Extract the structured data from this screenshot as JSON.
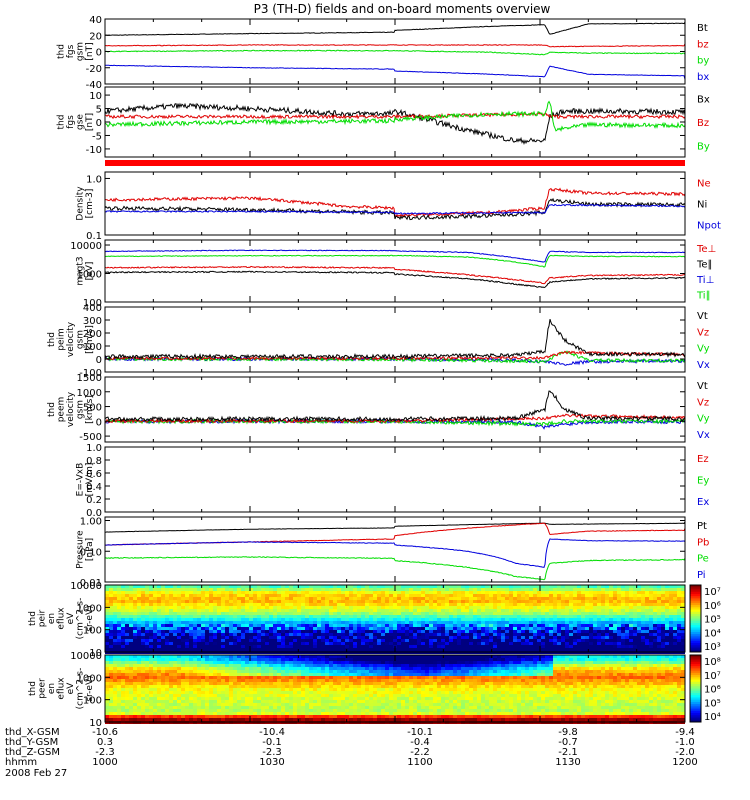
{
  "title": "P3 (TH-D) fields and on-board moments overview",
  "date_label": "2008 Feb 27",
  "orbit": {
    "rows": [
      {
        "name": "thd_X-GSM",
        "values": [
          "-10.6",
          "-10.4",
          "-10.1",
          "-9.8",
          "-9.4"
        ]
      },
      {
        "name": "thd_Y-GSM",
        "values": [
          "0.3",
          "-0.1",
          "-0.4",
          "-0.7",
          "-1.0"
        ]
      },
      {
        "name": "thd_Z-GSM",
        "values": [
          "-2.3",
          "-2.3",
          "-2.2",
          "-2.1",
          "-2.0"
        ]
      },
      {
        "name": "hhmm",
        "values": [
          "1000",
          "1030",
          "1100",
          "1130",
          "1200"
        ]
      }
    ]
  },
  "colors": {
    "black": "#000000",
    "red": "#e00000",
    "green": "#00dd00",
    "blue": "#0000dd"
  },
  "chart_data": [
    {
      "type": "line",
      "id": "fgs_gsm",
      "ylabel": [
        "thd",
        "fgs",
        "gsm",
        "[nT]"
      ],
      "ticks": [
        "40",
        "20",
        "0",
        "-20",
        "-40"
      ],
      "ylim": [
        -40,
        40
      ],
      "log": false,
      "legend": [
        {
          "label": "Bt",
          "color": "#000000"
        },
        {
          "label": "bz",
          "color": "#e00000"
        },
        {
          "label": "by",
          "color": "#00dd00"
        },
        {
          "label": "bx",
          "color": "#0000dd"
        }
      ],
      "series": [
        {
          "name": "Bt",
          "color": "#000000",
          "noise": 0.3,
          "x": [
            1000,
            1030,
            1100,
            1120,
            1131,
            1132,
            1140,
            1200
          ],
          "y": [
            20,
            22,
            26,
            31,
            33,
            21,
            34,
            36
          ]
        },
        {
          "name": "bz",
          "color": "#e00000",
          "noise": 0.4,
          "x": [
            1000,
            1030,
            1100,
            1131,
            1132,
            1200
          ],
          "y": [
            7,
            8,
            8,
            8,
            6,
            9
          ]
        },
        {
          "name": "by",
          "color": "#00dd00",
          "noise": 0.5,
          "x": [
            1000,
            1030,
            1100,
            1120,
            1131,
            1132,
            1140,
            1200
          ],
          "y": [
            0,
            1,
            1,
            -1,
            -4,
            -1,
            -2,
            -3
          ]
        },
        {
          "name": "bx",
          "color": "#0000dd",
          "noise": 0.3,
          "x": [
            1000,
            1030,
            1100,
            1120,
            1131,
            1132,
            1140,
            1200
          ],
          "y": [
            -17,
            -20,
            -24,
            -28,
            -31,
            -18,
            -28,
            -34
          ]
        }
      ]
    },
    {
      "type": "line",
      "id": "fgs_gse",
      "ylabel": [
        "thd",
        "fgs",
        "gse",
        "[nT]"
      ],
      "ticks": [
        "10",
        "5",
        "0",
        "-5",
        "-10"
      ],
      "ylim": [
        -13,
        13
      ],
      "log": false,
      "legend": [
        {
          "label": "Bx",
          "color": "#000000"
        },
        {
          "label": "Bz",
          "color": "#e00000"
        },
        {
          "label": "By",
          "color": "#00dd00"
        }
      ],
      "series": [
        {
          "name": "Bx",
          "color": "#000000",
          "noise": 1.0,
          "x": [
            1000,
            1015,
            1030,
            1050,
            1100,
            1115,
            1125,
            1131,
            1132,
            1135,
            1145,
            1200
          ],
          "y": [
            4,
            6,
            5,
            3,
            4,
            -3,
            -7,
            -7,
            2,
            4,
            4,
            3
          ]
        },
        {
          "name": "Bz",
          "color": "#e00000",
          "noise": 0.6,
          "x": [
            1000,
            1030,
            1100,
            1131,
            1132,
            1200
          ],
          "y": [
            2,
            2,
            2,
            3,
            2,
            2
          ]
        },
        {
          "name": "By",
          "color": "#00dd00",
          "noise": 0.8,
          "x": [
            1000,
            1030,
            1100,
            1120,
            1131,
            1132,
            1133,
            1140,
            1200
          ],
          "y": [
            -1,
            0,
            1,
            3,
            3,
            8,
            -3,
            -1,
            -2
          ]
        }
      ]
    },
    {
      "type": "line",
      "id": "density",
      "ylabel": [
        "Density",
        "[cm-3]"
      ],
      "ticks": [
        "1.0",
        "0.1"
      ],
      "ylim": [
        0.1,
        1.3
      ],
      "log": true,
      "legend": [
        {
          "label": "Ne",
          "color": "#e00000"
        },
        {
          "label": "Ni",
          "color": "#000000"
        },
        {
          "label": "Npot",
          "color": "#0000dd"
        }
      ],
      "series": [
        {
          "name": "Ne",
          "color": "#e00000",
          "noise": 0.06,
          "x": [
            1000,
            1030,
            1050,
            1100,
            1120,
            1131,
            1132,
            1140,
            1200
          ],
          "y": [
            0.42,
            0.45,
            0.32,
            0.22,
            0.25,
            0.3,
            0.65,
            0.55,
            0.5
          ]
        },
        {
          "name": "Ni",
          "color": "#000000",
          "noise": 0.08,
          "x": [
            1000,
            1030,
            1100,
            1120,
            1131,
            1132,
            1140,
            1200
          ],
          "y": [
            0.3,
            0.28,
            0.2,
            0.22,
            0.25,
            0.42,
            0.35,
            0.33
          ]
        },
        {
          "name": "Npot",
          "color": "#0000dd",
          "noise": 0.03,
          "x": [
            1000,
            1030,
            1100,
            1131,
            1132,
            1200
          ],
          "y": [
            0.26,
            0.26,
            0.24,
            0.25,
            0.34,
            0.3
          ]
        }
      ]
    },
    {
      "type": "line",
      "id": "temperature",
      "ylabel": [
        "magt3",
        "[eV]"
      ],
      "ticks": [
        "10000",
        "1000",
        "100"
      ],
      "ylim": [
        100,
        15000
      ],
      "log": true,
      "legend": [
        {
          "label": "Te⊥",
          "color": "#e00000"
        },
        {
          "label": "Te∥",
          "color": "#000000"
        },
        {
          "label": "Ti⊥",
          "color": "#0000dd"
        },
        {
          "label": "Ti∥",
          "color": "#00dd00"
        }
      ],
      "series": [
        {
          "name": "Ti⊥",
          "color": "#0000dd",
          "noise": 0.03,
          "x": [
            1000,
            1030,
            1100,
            1115,
            1125,
            1131,
            1132,
            1140,
            1200
          ],
          "y": [
            6000,
            6500,
            6200,
            5500,
            3500,
            2500,
            6000,
            5500,
            5500
          ]
        },
        {
          "name": "Ti∥",
          "color": "#00dd00",
          "noise": 0.03,
          "x": [
            1000,
            1030,
            1100,
            1115,
            1125,
            1131,
            1132,
            1140,
            1200
          ],
          "y": [
            4000,
            4200,
            4300,
            3800,
            2500,
            1700,
            4300,
            4000,
            3800
          ]
        },
        {
          "name": "Te⊥",
          "color": "#e00000",
          "noise": 0.05,
          "x": [
            1000,
            1030,
            1100,
            1115,
            1125,
            1131,
            1132,
            1140,
            1200
          ],
          "y": [
            1600,
            1700,
            1400,
            900,
            600,
            450,
            700,
            850,
            1000
          ]
        },
        {
          "name": "Te∥",
          "color": "#000000",
          "noise": 0.05,
          "x": [
            1000,
            1030,
            1100,
            1115,
            1125,
            1131,
            1132,
            1140,
            1200
          ],
          "y": [
            1100,
            1150,
            950,
            650,
            420,
            320,
            500,
            650,
            800
          ]
        }
      ]
    },
    {
      "type": "line",
      "id": "peim_velocity",
      "ylabel": [
        "thd",
        "peim",
        "velocity",
        "gsm",
        "[km/s]"
      ],
      "ticks": [
        "400",
        "300",
        "200",
        "100",
        "0",
        "-100"
      ],
      "ylim": [
        -100,
        400
      ],
      "log": false,
      "legend": [
        {
          "label": "Vt",
          "color": "#000000"
        },
        {
          "label": "Vz",
          "color": "#e00000"
        },
        {
          "label": "Vy",
          "color": "#00dd00"
        },
        {
          "label": "Vx",
          "color": "#0000dd"
        }
      ],
      "series": [
        {
          "name": "Vx",
          "color": "#0000dd",
          "noise": 12,
          "x": [
            1000,
            1100,
            1125,
            1131,
            1135,
            1140,
            1200
          ],
          "y": [
            0,
            0,
            -10,
            -20,
            -40,
            -20,
            -5
          ]
        },
        {
          "name": "Vy",
          "color": "#00dd00",
          "noise": 12,
          "x": [
            1000,
            1100,
            1125,
            1131,
            1135,
            1140,
            1200
          ],
          "y": [
            0,
            -5,
            -15,
            -20,
            60,
            -10,
            -20
          ]
        },
        {
          "name": "Vz",
          "color": "#e00000",
          "noise": 10,
          "x": [
            1000,
            1100,
            1131,
            1135,
            1200
          ],
          "y": [
            5,
            5,
            10,
            50,
            10
          ]
        },
        {
          "name": "Vt",
          "color": "#000000",
          "noise": 15,
          "x": [
            1000,
            1100,
            1125,
            1131,
            1132,
            1135,
            1140,
            1200
          ],
          "y": [
            20,
            20,
            30,
            60,
            300,
            150,
            40,
            20
          ]
        }
      ]
    },
    {
      "type": "line",
      "id": "peem_velocity",
      "ylabel": [
        "thd",
        "peem",
        "velocity",
        "gsm",
        "[km/s]"
      ],
      "ticks": [
        "1500",
        "1000",
        "500",
        "0",
        "-500"
      ],
      "ylim": [
        -700,
        1500
      ],
      "log": false,
      "legend": [
        {
          "label": "Vt",
          "color": "#000000"
        },
        {
          "label": "Vz",
          "color": "#e00000"
        },
        {
          "label": "Vy",
          "color": "#00dd00"
        },
        {
          "label": "Vx",
          "color": "#0000dd"
        }
      ],
      "series": [
        {
          "name": "Vx",
          "color": "#0000dd",
          "noise": 60,
          "x": [
            1000,
            1100,
            1125,
            1131,
            1135,
            1140,
            1200
          ],
          "y": [
            0,
            0,
            -20,
            -200,
            -100,
            -20,
            0
          ]
        },
        {
          "name": "Vy",
          "color": "#00dd00",
          "noise": 60,
          "x": [
            1000,
            1100,
            1131,
            1135,
            1200
          ],
          "y": [
            0,
            0,
            -100,
            0,
            0
          ]
        },
        {
          "name": "Vz",
          "color": "#e00000",
          "noise": 50,
          "x": [
            1000,
            1100,
            1131,
            1135,
            1200
          ],
          "y": [
            10,
            10,
            100,
            200,
            10
          ]
        },
        {
          "name": "Vt",
          "color": "#000000",
          "noise": 70,
          "x": [
            1000,
            1100,
            1125,
            1131,
            1132,
            1135,
            1140,
            1200
          ],
          "y": [
            80,
            80,
            100,
            400,
            1100,
            400,
            100,
            80
          ]
        }
      ]
    },
    {
      "type": "line",
      "id": "efield",
      "ylabel": [
        "E=-VxB",
        "[mV/m]"
      ],
      "ticks": [
        "1.0",
        "0.8",
        "0.6",
        "0.4",
        "0.2",
        "0.0"
      ],
      "ylim": [
        0,
        1
      ],
      "log": false,
      "legend": [
        {
          "label": "Ez",
          "color": "#e00000"
        },
        {
          "label": "Ey",
          "color": "#00dd00"
        },
        {
          "label": "Ex",
          "color": "#0000dd"
        }
      ],
      "series": []
    },
    {
      "type": "line",
      "id": "pressure",
      "ylabel": [
        "Pressure",
        "[nPa]"
      ],
      "ticks": [
        "1.00",
        "0.10",
        "0.01"
      ],
      "ylim": [
        0.01,
        1.3
      ],
      "log": true,
      "legend": [
        {
          "label": "Pt",
          "color": "#000000"
        },
        {
          "label": "Pb",
          "color": "#e00000"
        },
        {
          "label": "Pe",
          "color": "#00dd00"
        },
        {
          "label": "Pi",
          "color": "#0000dd"
        }
      ],
      "series": [
        {
          "name": "Pt",
          "color": "#000000",
          "noise": 0.01,
          "x": [
            1000,
            1030,
            1100,
            1131,
            1132,
            1200
          ],
          "y": [
            0.42,
            0.52,
            0.65,
            0.82,
            0.75,
            0.9
          ]
        },
        {
          "name": "Pb",
          "color": "#e00000",
          "noise": 0.02,
          "x": [
            1000,
            1030,
            1100,
            1131,
            1132,
            1140,
            1200
          ],
          "y": [
            0.16,
            0.2,
            0.32,
            0.82,
            0.35,
            0.45,
            0.55
          ]
        },
        {
          "name": "Pi",
          "color": "#0000dd",
          "noise": 0.02,
          "x": [
            1000,
            1030,
            1100,
            1115,
            1125,
            1131,
            1132,
            1140,
            1200
          ],
          "y": [
            0.16,
            0.2,
            0.16,
            0.1,
            0.04,
            0.03,
            0.25,
            0.22,
            0.2
          ]
        },
        {
          "name": "Pe",
          "color": "#00dd00",
          "noise": 0.03,
          "x": [
            1000,
            1030,
            1100,
            1115,
            1125,
            1131,
            1132,
            1140,
            1200
          ],
          "y": [
            0.06,
            0.065,
            0.05,
            0.03,
            0.015,
            0.012,
            0.04,
            0.05,
            0.06
          ]
        }
      ]
    },
    {
      "type": "heatmap",
      "id": "peir_eflux",
      "ylabel": [
        "thd",
        "peir",
        "en",
        "eflux",
        "eV",
        "(cm^2-s-",
        "sr-eV)"
      ],
      "ticks": [
        "10000",
        "1000",
        "100",
        "10"
      ],
      "ylim": [
        10,
        10000
      ],
      "log": true,
      "colorbar_ticks": [
        "10⁷",
        "10⁶",
        "10⁵",
        "10⁴",
        "10³"
      ],
      "zlim": [
        1000,
        10000000
      ],
      "profile": [
        {
          "e": 10,
          "v": 2.0
        },
        {
          "e": 20,
          "v": 3.0
        },
        {
          "e": 60,
          "v": 3.2
        },
        {
          "e": 200,
          "v": 4.0
        },
        {
          "e": 800,
          "v": 5.2
        },
        {
          "e": 3000,
          "v": 5.8
        },
        {
          "e": 7000,
          "v": 5.6
        },
        {
          "e": 15000,
          "v": 4.8
        }
      ]
    },
    {
      "type": "heatmap",
      "id": "peer_eflux",
      "ylabel": [
        "thd",
        "peer",
        "en",
        "eflux",
        "eV",
        "(cm^2-s-",
        "sr-eV)"
      ],
      "ticks": [
        "10000",
        "1000",
        "100",
        "10"
      ],
      "ylim": [
        10,
        10000
      ],
      "log": true,
      "colorbar_ticks": [
        "10⁸",
        "10⁷",
        "10⁶",
        "10⁵",
        "10⁴"
      ],
      "zlim": [
        10000,
        100000000
      ],
      "profile": [
        {
          "e": 10,
          "v": 8.0
        },
        {
          "e": 14,
          "v": 7.8
        },
        {
          "e": 25,
          "v": 6.2
        },
        {
          "e": 100,
          "v": 6.3
        },
        {
          "e": 400,
          "v": 6.5
        },
        {
          "e": 1500,
          "v": 7.1
        },
        {
          "e": 4000,
          "v": 6.6
        },
        {
          "e": 12000,
          "v": 5.5
        }
      ]
    }
  ]
}
